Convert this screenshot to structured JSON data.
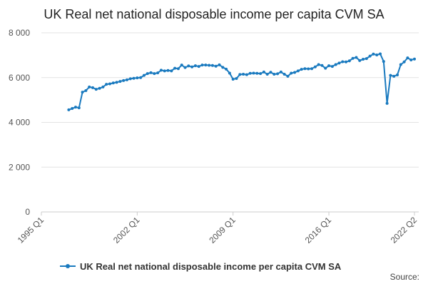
{
  "chart_data": {
    "type": "line",
    "title": "UK Real net national disposable income per capita CVM SA",
    "source": "Source:",
    "categories": [
      "1995 Q1",
      null,
      null,
      null,
      null,
      null,
      null,
      null,
      null,
      null,
      null,
      null,
      null,
      null,
      null,
      null,
      null,
      null,
      null,
      null,
      null,
      null,
      null,
      null,
      null,
      null,
      null,
      null,
      "2002 Q1",
      null,
      null,
      null,
      null,
      null,
      null,
      null,
      null,
      null,
      null,
      null,
      null,
      null,
      null,
      null,
      null,
      null,
      null,
      null,
      null,
      null,
      null,
      null,
      null,
      null,
      null,
      null,
      "2009 Q1",
      null,
      null,
      null,
      null,
      null,
      null,
      null,
      null,
      null,
      null,
      null,
      null,
      null,
      null,
      null,
      null,
      null,
      null,
      null,
      null,
      null,
      null,
      null,
      null,
      null,
      null,
      null,
      "2016 Q1",
      null,
      null,
      null,
      null,
      null,
      null,
      null,
      null,
      null,
      null,
      null,
      null,
      null,
      null,
      null,
      null,
      null,
      null,
      null,
      null,
      null,
      null,
      null,
      null,
      "2022 Q2"
    ],
    "series": [
      {
        "name": "UK Real net national disposable income per capita CVM SA",
        "color": "#1a7abf",
        "values": [
          null,
          null,
          null,
          null,
          null,
          null,
          null,
          null,
          4560,
          4620,
          4680,
          4650,
          5350,
          5420,
          5580,
          5550,
          5480,
          5520,
          5580,
          5700,
          5720,
          5760,
          5790,
          5830,
          5870,
          5900,
          5950,
          5970,
          5990,
          6000,
          6100,
          6180,
          6220,
          6180,
          6210,
          6330,
          6300,
          6320,
          6300,
          6420,
          6400,
          6560,
          6450,
          6520,
          6480,
          6530,
          6500,
          6560,
          6560,
          6550,
          6540,
          6510,
          6570,
          6460,
          6380,
          6200,
          5930,
          5960,
          6140,
          6150,
          6130,
          6190,
          6200,
          6190,
          6180,
          6250,
          6150,
          6240,
          6150,
          6170,
          6250,
          6150,
          6060,
          6200,
          6230,
          6300,
          6370,
          6400,
          6390,
          6400,
          6480,
          6580,
          6540,
          6420,
          6530,
          6500,
          6580,
          6650,
          6710,
          6700,
          6750,
          6860,
          6900,
          6760,
          6820,
          6850,
          6960,
          7050,
          7010,
          7060,
          6720,
          4850,
          6100,
          6060,
          6120,
          6580,
          6700,
          6880,
          6790,
          6830
        ]
      }
    ],
    "ylim": [
      0,
      8000
    ],
    "yticks": [
      0,
      {
        "value": 2000,
        "label": "2 000"
      },
      {
        "value": 4000,
        "label": "4 000"
      },
      {
        "value": 6000,
        "label": "6 000"
      },
      {
        "value": 8000,
        "label": "8 000"
      }
    ],
    "grid": true
  }
}
